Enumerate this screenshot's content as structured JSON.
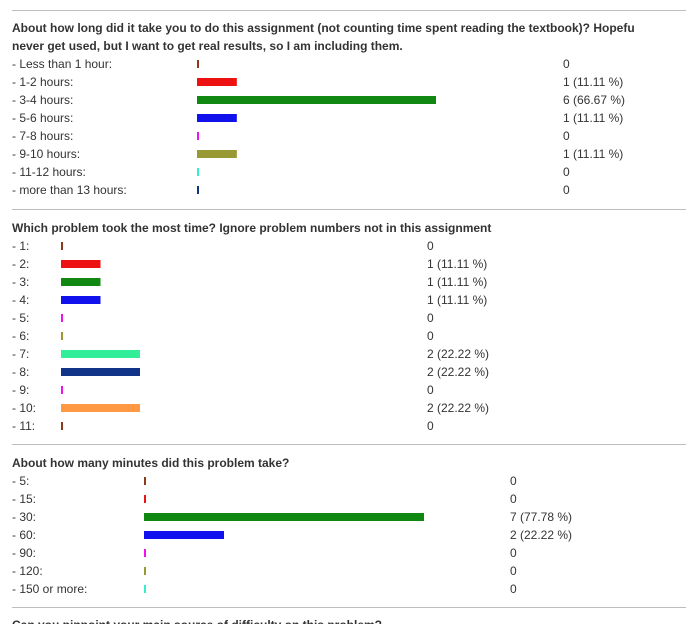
{
  "chart_data": [
    {
      "type": "bar",
      "title": "About how long did it take you to do this assignment (not counting time spent reading the textbook)? Hopefu",
      "title_line2": "never get used, but I want to get real results, so I am including them.",
      "categories": [
        "- Less than 1 hour:",
        "- 1-2 hours:",
        "- 3-4 hours:",
        "- 5-6 hours:",
        "- 7-8 hours:",
        "- 9-10 hours:",
        "- 11-12 hours:",
        "- more than 13 hours:"
      ],
      "values": [
        0,
        1,
        6,
        1,
        0,
        1,
        0,
        0
      ],
      "value_labels": [
        "0",
        "1 (11.11 %)",
        "6 (66.67 %)",
        "1 (11.11 %)",
        "0",
        "1 (11.11 %)",
        "0",
        "0"
      ],
      "colors": [
        "#8b3a1a",
        "#ee1111",
        "#118811",
        "#1111ee",
        "#ee11ee",
        "#999933",
        "#33eecc",
        "#113388"
      ],
      "xlim": [
        0,
        6
      ]
    },
    {
      "type": "bar",
      "title": "Which problem took the most time? Ignore problem numbers not in this assignment",
      "categories": [
        "- 1:",
        "- 2:",
        "- 3:",
        "- 4:",
        "- 5:",
        "- 6:",
        "- 7:",
        "- 8:",
        "- 9:",
        "- 10:",
        "- 11:"
      ],
      "values": [
        0,
        1,
        1,
        1,
        0,
        0,
        2,
        2,
        0,
        2,
        0
      ],
      "value_labels": [
        "0",
        "1 (11.11 %)",
        "1 (11.11 %)",
        "1 (11.11 %)",
        "0",
        "0",
        "2 (22.22 %)",
        "2 (22.22 %)",
        "0",
        "2 (22.22 %)",
        "0"
      ],
      "colors": [
        "#8b3a1a",
        "#ee1111",
        "#118811",
        "#1111ee",
        "#ee11ee",
        "#999933",
        "#33ee99",
        "#113388",
        "#ee11ee",
        "#ff9944",
        "#8b3a1a"
      ],
      "xlim": [
        0,
        2
      ]
    },
    {
      "type": "bar",
      "title": "About how many minutes did this problem take?",
      "categories": [
        "- 5:",
        "- 15:",
        "- 30:",
        "- 60:",
        "- 90:",
        "- 120:",
        "- 150 or more:"
      ],
      "values": [
        0,
        0,
        7,
        2,
        0,
        0,
        0
      ],
      "value_labels": [
        "0",
        "0",
        "7 (77.78 %)",
        "2 (22.22 %)",
        "0",
        "0",
        "0"
      ],
      "colors": [
        "#8b3a1a",
        "#ee1111",
        "#118811",
        "#1111ee",
        "#ee11ee",
        "#999933",
        "#33eecc"
      ],
      "xlim": [
        0,
        7
      ]
    }
  ],
  "next_question": {
    "title": "Can you pinpoint your main source of difficulty on this problem?"
  }
}
